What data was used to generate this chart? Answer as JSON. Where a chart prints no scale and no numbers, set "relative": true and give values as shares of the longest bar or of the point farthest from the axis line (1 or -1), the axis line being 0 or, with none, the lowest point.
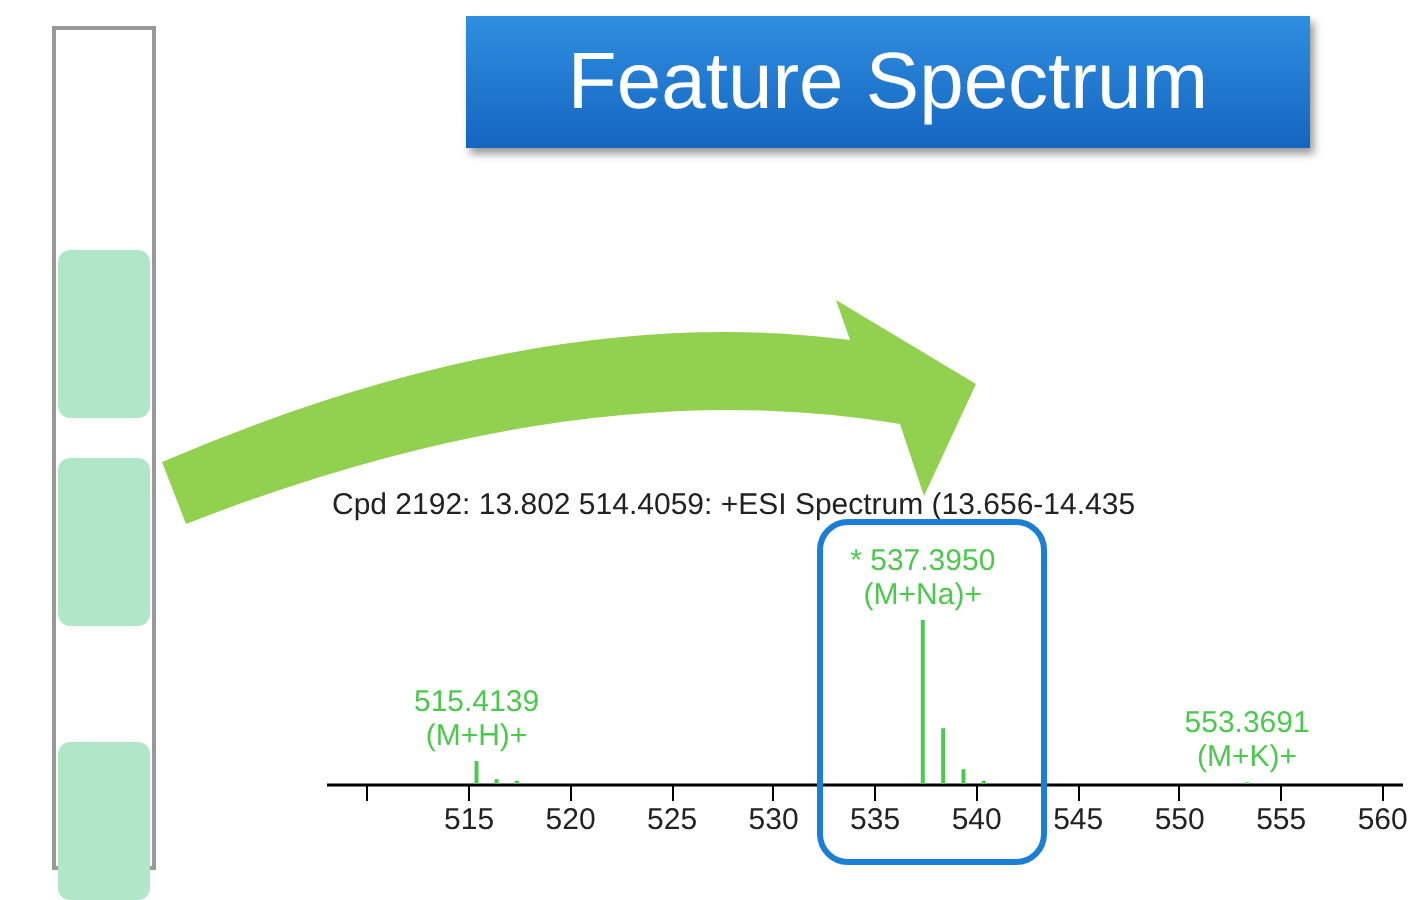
{
  "chart_data": {
    "type": "bar",
    "title": "Feature Spectrum",
    "subtitle": "Cpd 2192: 13.802 514.4059: +ESI Spectrum (13.656-14.435",
    "relative": true,
    "color": "#4cc94c",
    "x": [
      515.4139,
      516.4,
      517.4,
      537.395,
      538.4,
      539.4,
      540.4,
      553.3691
    ],
    "values": [
      0.14,
      0.03,
      0.02,
      1,
      0.34,
      0.09,
      0.02,
      0.01
    ],
    "xlim": [
      508,
      561
    ],
    "xticks": [
      {
        "value": 510,
        "label": null
      },
      515,
      520,
      525,
      530,
      535,
      540,
      545,
      550,
      555,
      560
    ],
    "annotations": [
      {
        "text": "515.4139\n(M+H)+",
        "x": 515.4139,
        "y": 0.14
      },
      {
        "text": "* 537.3950\n(M+Na)+",
        "x": 537.395,
        "y": 1
      },
      {
        "text": "553.3691\n(M+K)+",
        "x": 553.3691,
        "y": 0.01
      }
    ]
  }
}
